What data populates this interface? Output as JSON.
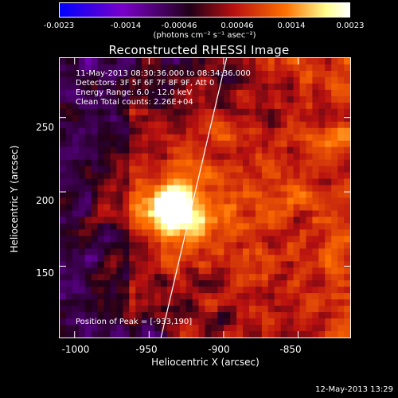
{
  "chart_data": {
    "type": "heatmap",
    "title": "Reconstructed RHESSI Image",
    "xlabel": "Heliocentric X (arcsec)",
    "ylabel": "Heliocentric Y (arcsec)",
    "xlim": [
      -1010,
      -815
    ],
    "ylim": [
      102,
      290
    ],
    "x_ticks": [
      "-1000",
      "-950",
      "-900",
      "-850"
    ],
    "x_tick_values": [
      -1000,
      -950,
      -900,
      -850
    ],
    "y_ticks": [
      "250",
      "200",
      "150"
    ],
    "y_tick_values": [
      250,
      200,
      150
    ],
    "colorbar": {
      "ticks": [
        "-0.0023",
        "-0.0014",
        "-0.00046",
        "0.00046",
        "0.0014",
        "0.0023"
      ],
      "tick_values": [
        -0.0023,
        -0.0014,
        -0.00046,
        0.00046,
        0.0014,
        0.0023
      ],
      "unit_label": "(photons cm⁻² s⁻¹ asec⁻²)"
    },
    "peak": {
      "x": -933,
      "y": 190
    },
    "limb_line": [
      [
        -942,
        102
      ],
      [
        -898,
        290
      ]
    ]
  },
  "info": {
    "time": "11-May-2013 08:30:36.000 to 08:34:36.000",
    "detectors": "Detectors: 3F 5F 6F 7F 8F 9F, Att 0",
    "energy": "Energy Range: 6.0 - 12.0 keV",
    "clean": "Clean     Total counts: 2.26E+04",
    "peak_text": "Position of Peak = [-933,190]"
  },
  "timestamp": "12-May-2013 13:29",
  "colors": {
    "colormap": [
      "#0000ff",
      "#7a00c8",
      "#200018",
      "#c01818",
      "#ff6a00",
      "#ffff80",
      "#ffffff"
    ]
  }
}
